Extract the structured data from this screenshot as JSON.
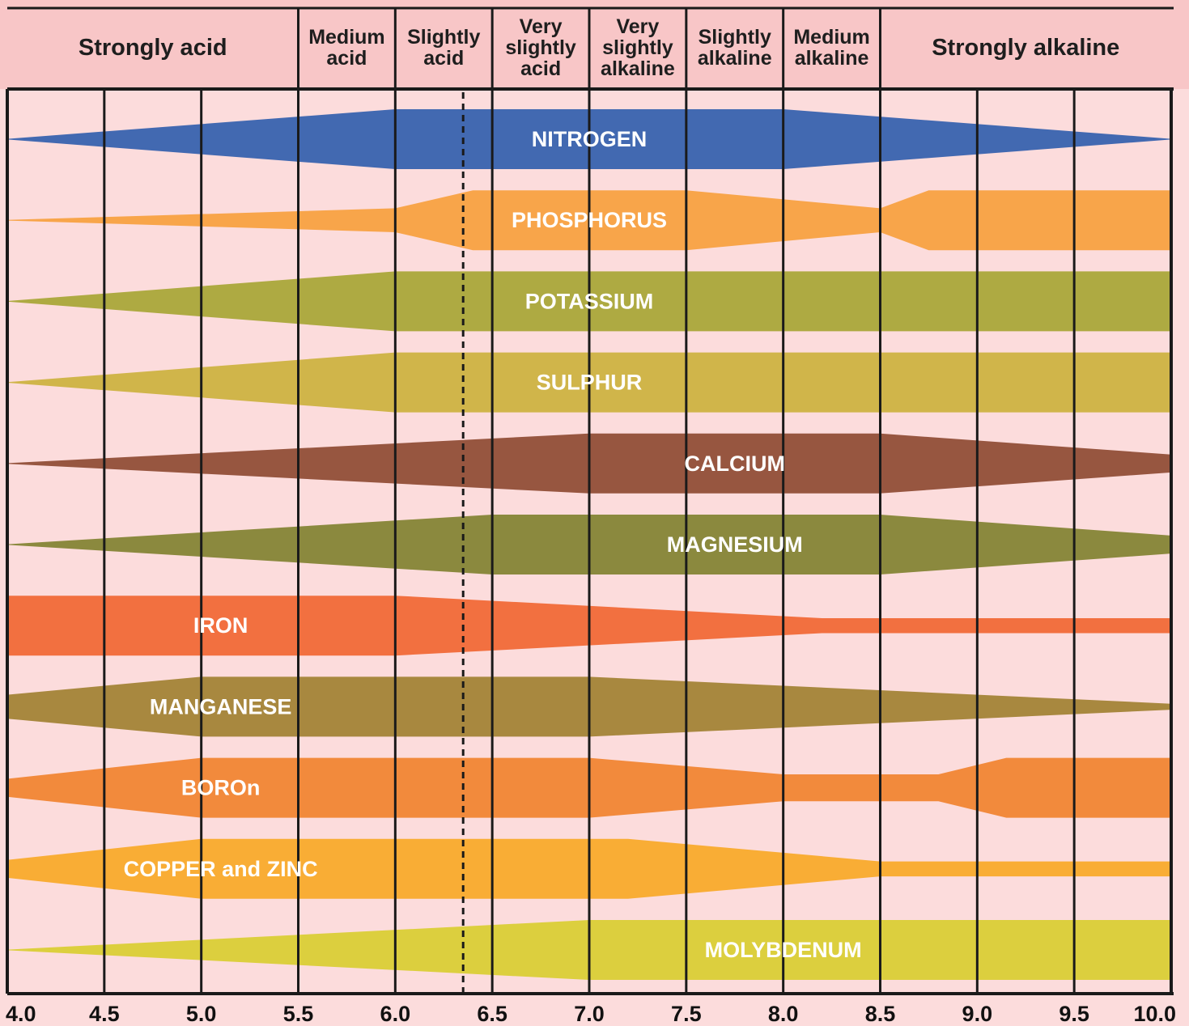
{
  "colors": {
    "background": "#fcdcdc",
    "grid": "#1a1a1a"
  },
  "chart_data": {
    "type": "area",
    "title": "",
    "xlabel": "",
    "ylabel": "",
    "xlim": [
      4.0,
      10.0
    ],
    "x_ticks": [
      "4.0",
      "4.5",
      "5.0",
      "5.5",
      "6.0",
      "6.5",
      "7.0",
      "7.5",
      "8.0",
      "8.5",
      "9.0",
      "9.5",
      "10.0"
    ],
    "reference_line_x": 6.35,
    "categories": [
      {
        "label": [
          "Strongly acid"
        ],
        "from": 4.0,
        "to": 5.5
      },
      {
        "label": [
          "Medium",
          "acid"
        ],
        "from": 5.5,
        "to": 6.0
      },
      {
        "label": [
          "Slightly",
          "acid"
        ],
        "from": 6.0,
        "to": 6.5
      },
      {
        "label": [
          "Very",
          "slightly",
          "acid"
        ],
        "from": 6.5,
        "to": 7.0
      },
      {
        "label": [
          "Very",
          "slightly",
          "alkaline"
        ],
        "from": 7.0,
        "to": 7.5
      },
      {
        "label": [
          "Slightly",
          "alkaline"
        ],
        "from": 7.5,
        "to": 8.0
      },
      {
        "label": [
          "Medium",
          "alkaline"
        ],
        "from": 8.0,
        "to": 8.5
      },
      {
        "label": [
          "Strongly alkaline"
        ],
        "from": 8.5,
        "to": 10.0
      }
    ],
    "series": [
      {
        "name": "NITROGEN",
        "color": "#4269b1",
        "label_x": 7.0,
        "profile": [
          [
            4.0,
            0.0
          ],
          [
            6.0,
            1.0
          ],
          [
            8.0,
            1.0
          ],
          [
            10.0,
            0.0
          ]
        ]
      },
      {
        "name": "PHOSPHORUS",
        "color": "#f8a54a",
        "label_x": 7.0,
        "profile": [
          [
            4.0,
            0.0
          ],
          [
            6.0,
            0.4
          ],
          [
            6.4,
            1.0
          ],
          [
            7.5,
            1.0
          ],
          [
            8.5,
            0.4
          ],
          [
            8.75,
            1.0
          ],
          [
            10.0,
            1.0
          ]
        ]
      },
      {
        "name": "POTASSIUM",
        "color": "#aeaa42",
        "label_x": 7.0,
        "profile": [
          [
            4.0,
            0.0
          ],
          [
            6.0,
            1.0
          ],
          [
            10.0,
            1.0
          ]
        ]
      },
      {
        "name": "SULPHUR",
        "color": "#d0b54a",
        "label_x": 7.0,
        "profile": [
          [
            4.0,
            0.0
          ],
          [
            6.0,
            1.0
          ],
          [
            10.0,
            1.0
          ]
        ]
      },
      {
        "name": "CALCIUM",
        "color": "#975640",
        "label_x": 7.75,
        "profile": [
          [
            4.0,
            0.0
          ],
          [
            7.0,
            1.0
          ],
          [
            8.5,
            1.0
          ],
          [
            10.0,
            0.3
          ]
        ]
      },
      {
        "name": "MAGNESIUM",
        "color": "#8b893e",
        "label_x": 7.75,
        "profile": [
          [
            4.0,
            0.0
          ],
          [
            6.5,
            1.0
          ],
          [
            8.5,
            1.0
          ],
          [
            10.0,
            0.3
          ]
        ]
      },
      {
        "name": "IRON",
        "color": "#f27040",
        "label_x": 5.1,
        "profile": [
          [
            4.0,
            1.0
          ],
          [
            6.0,
            1.0
          ],
          [
            8.2,
            0.25
          ],
          [
            10.0,
            0.25
          ]
        ]
      },
      {
        "name": "MANGANESE",
        "color": "#a8883f",
        "label_x": 5.1,
        "profile": [
          [
            4.0,
            0.4
          ],
          [
            5.0,
            1.0
          ],
          [
            6.0,
            1.0
          ],
          [
            7.0,
            1.0
          ],
          [
            10.0,
            0.1
          ]
        ]
      },
      {
        "name": "BOROn",
        "color": "#f28a3c",
        "label_x": 5.1,
        "profile": [
          [
            4.0,
            0.3
          ],
          [
            5.0,
            1.0
          ],
          [
            7.0,
            1.0
          ],
          [
            8.0,
            0.45
          ],
          [
            8.8,
            0.45
          ],
          [
            9.15,
            1.0
          ],
          [
            10.0,
            1.0
          ]
        ]
      },
      {
        "name": "COPPER and ZINC",
        "color": "#f9ad35",
        "label_x": 5.1,
        "profile": [
          [
            4.0,
            0.3
          ],
          [
            5.0,
            1.0
          ],
          [
            7.2,
            1.0
          ],
          [
            8.5,
            0.25
          ],
          [
            10.0,
            0.25
          ]
        ]
      },
      {
        "name": "MOLYBDENUM",
        "color": "#dccf3e",
        "label_x": 8.0,
        "profile": [
          [
            4.0,
            0.0
          ],
          [
            7.0,
            1.0
          ],
          [
            10.0,
            1.0
          ]
        ]
      }
    ]
  }
}
